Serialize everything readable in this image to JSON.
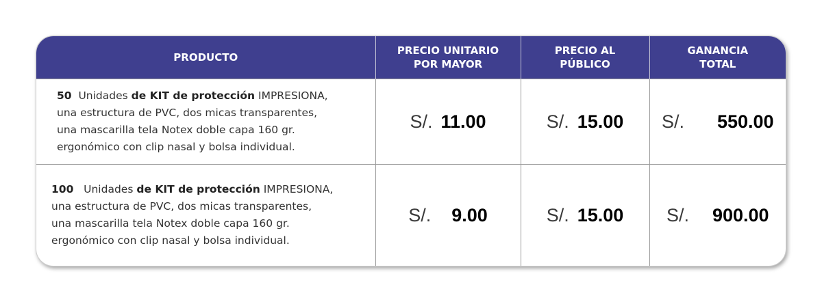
{
  "header": {
    "product": "PRODUCTO",
    "unit_price": [
      "PRECIO UNITARIO",
      "POR MAYOR"
    ],
    "public_price": [
      "PRECIO AL",
      "PÚBLICO"
    ],
    "total_profit": [
      "GANANCIA",
      "TOTAL"
    ]
  },
  "rows": [
    {
      "qty": "50",
      "units": "Unidades",
      "bold": "de KIT de protección",
      "brand": "IMPRESIONA,",
      "line2": "una estructura de PVC,  dos micas transparentes,",
      "line3": "una mascarilla tela Notex doble capa 160 gr.",
      "line4": "ergonómico con clip nasal y bolsa individual.",
      "currency": "S/.",
      "unit_price": "11.00",
      "public_price": "15.00",
      "total": "550.00"
    },
    {
      "qty": "100",
      "units": "Unidades",
      "bold": "de KIT de protección",
      "brand": "IMPRESIONA,",
      "line2": "una estructura de PVC,  dos micas transparentes,",
      "line3": "una mascarilla tela Notex doble capa 160 gr.",
      "line4": "ergonómico con clip nasal y bolsa individual.",
      "currency": "S/.",
      "unit_price": "9.00",
      "public_price": "15.00",
      "total": "900.00"
    }
  ]
}
